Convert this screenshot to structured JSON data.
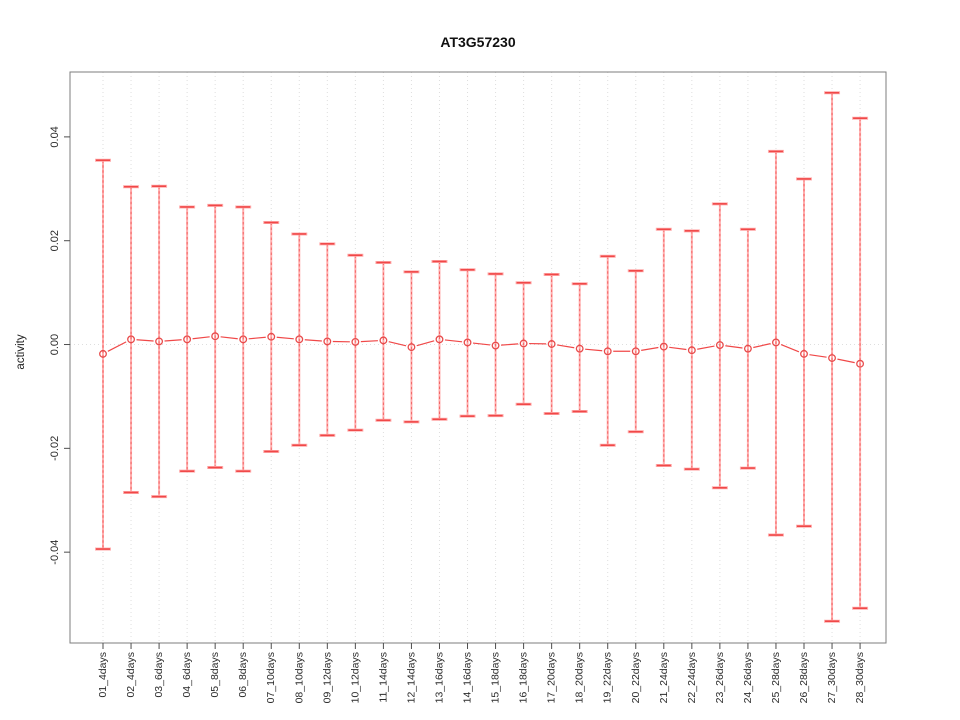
{
  "page": {
    "background": "#ffffff"
  },
  "chart_data": {
    "type": "line",
    "subtype": "means-with-error-bars",
    "title": "AT3G57230",
    "xlabel": "",
    "ylabel": "activity",
    "legend": "none",
    "grid": "vertical dotted gridline per category; dotted horizontal line at 0",
    "categories": [
      "01_4days",
      "02_4days",
      "03_6days",
      "04_6days",
      "05_8days",
      "06_8days",
      "07_10days",
      "08_10days",
      "09_12days",
      "10_12days",
      "11_14days",
      "12_14days",
      "13_16days",
      "14_16days",
      "15_18days",
      "16_18days",
      "17_20days",
      "18_20days",
      "19_22days",
      "20_22days",
      "21_24days",
      "22_24days",
      "23_26days",
      "24_26days",
      "25_28days",
      "26_28days",
      "27_30days",
      "28_30days"
    ],
    "series": [
      {
        "name": "mean",
        "values": [
          -0.0018,
          0.001,
          0.0006,
          0.001,
          0.0016,
          0.001,
          0.0015,
          0.001,
          0.0006,
          0.0005,
          0.0008,
          -0.0005,
          0.001,
          0.0004,
          -0.0002,
          0.0002,
          0.0001,
          -0.0008,
          -0.0013,
          -0.0013,
          -0.0004,
          -0.0011,
          -0.0001,
          -0.0008,
          0.0004,
          -0.0018,
          -0.0026,
          -0.0037
        ]
      },
      {
        "name": "upper",
        "values": [
          0.0355,
          0.0304,
          0.0305,
          0.0265,
          0.0268,
          0.0265,
          0.0235,
          0.0213,
          0.0194,
          0.0172,
          0.0158,
          0.014,
          0.016,
          0.0144,
          0.0136,
          0.0119,
          0.0135,
          0.0117,
          0.017,
          0.0142,
          0.0222,
          0.0219,
          0.0271,
          0.0222,
          0.0372,
          0.0319,
          0.0485,
          0.0436
        ]
      },
      {
        "name": "lower",
        "values": [
          -0.0394,
          -0.0285,
          -0.0293,
          -0.0244,
          -0.0237,
          -0.0244,
          -0.0206,
          -0.0194,
          -0.0175,
          -0.0165,
          -0.0146,
          -0.0149,
          -0.0144,
          -0.0138,
          -0.0137,
          -0.0115,
          -0.0133,
          -0.0129,
          -0.0194,
          -0.0168,
          -0.0233,
          -0.024,
          -0.0276,
          -0.0238,
          -0.0367,
          -0.035,
          -0.0533,
          -0.0508
        ]
      }
    ],
    "yticks": [
      -0.04,
      -0.02,
      0,
      0.02,
      0.04
    ],
    "ylim": [
      -0.0575,
      0.0525
    ],
    "colors": {
      "frame": "#7d7d7d",
      "tick": "#4d4d4d",
      "text": "#2b2b2b",
      "grid": "#dedede",
      "bar_light": "#ffadad",
      "bar_dark": "#f04848",
      "point": "#e84b4b"
    }
  }
}
